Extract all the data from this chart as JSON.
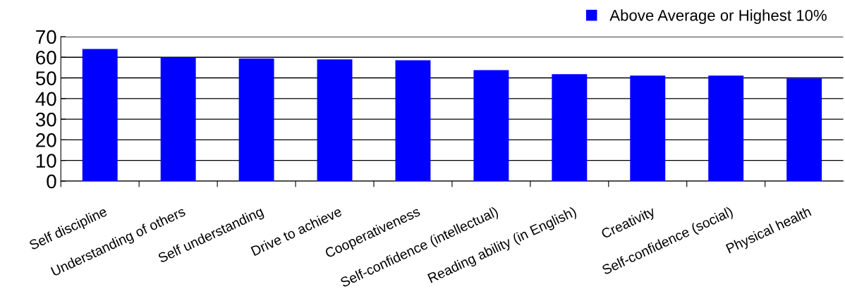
{
  "chart_data": {
    "type": "bar",
    "categories": [
      "Self discipline",
      "Understanding of others",
      "Self understanding",
      "Drive to achieve",
      "Cooperativeness",
      "Self-confidence (intellectual)",
      "Reading ability (in English)",
      "Creativity",
      "Self-confidence (social)",
      "Physical health"
    ],
    "series": [
      {
        "name": "Above Average or Highest 10%",
        "color": "#0000ff",
        "values": [
          64,
          60,
          59.4,
          59.0,
          58.6,
          53.8,
          51.8,
          51.1,
          51.1,
          49.8
        ]
      }
    ],
    "ylim": [
      0,
      70
    ],
    "yticks": [
      0,
      10,
      20,
      30,
      40,
      50,
      60,
      70
    ],
    "grid": "y",
    "legend": "top right"
  }
}
